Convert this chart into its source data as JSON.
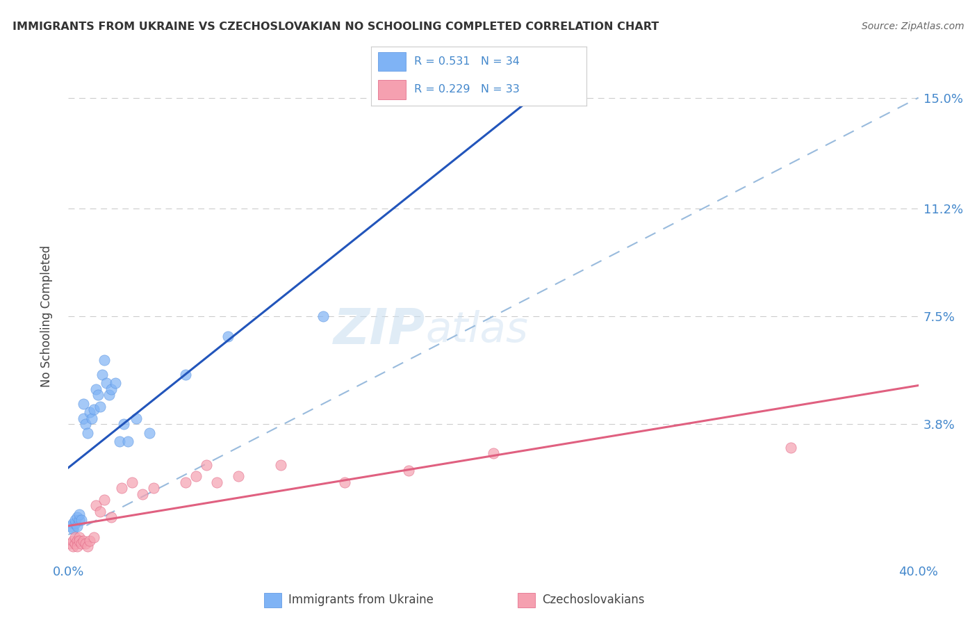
{
  "title": "IMMIGRANTS FROM UKRAINE VS CZECHOSLOVAKIAN NO SCHOOLING COMPLETED CORRELATION CHART",
  "source": "Source: ZipAtlas.com",
  "ylabel": "No Schooling Completed",
  "xlim": [
    0.0,
    0.4
  ],
  "ylim": [
    -0.008,
    0.158
  ],
  "xticks": [
    0.0,
    0.1,
    0.2,
    0.3,
    0.4
  ],
  "xticklabels": [
    "0.0%",
    "",
    "",
    "",
    "40.0%"
  ],
  "yticks": [
    0.038,
    0.075,
    0.112,
    0.15
  ],
  "yticklabels": [
    "3.8%",
    "7.5%",
    "11.2%",
    "15.0%"
  ],
  "color_ukraine": "#7fb3f5",
  "color_ukraine_edge": "#5591e0",
  "color_ukraine_line": "#2255bb",
  "color_czech": "#f5a0b0",
  "color_czech_edge": "#e06080",
  "color_czech_line": "#e06080",
  "color_diag": "#99bbdd",
  "watermark_zip": "ZIP",
  "watermark_atlas": "atlas",
  "grid_color": "#cccccc",
  "tick_label_color": "#4488cc",
  "legend_box_color": "#ffffff",
  "legend_border_color": "#cccccc",
  "ukraine_scatter_x": [
    0.001,
    0.002,
    0.002,
    0.003,
    0.003,
    0.004,
    0.004,
    0.005,
    0.005,
    0.006,
    0.007,
    0.007,
    0.008,
    0.009,
    0.01,
    0.011,
    0.012,
    0.013,
    0.014,
    0.015,
    0.016,
    0.017,
    0.018,
    0.019,
    0.02,
    0.022,
    0.024,
    0.026,
    0.028,
    0.032,
    0.038,
    0.055,
    0.075,
    0.12
  ],
  "ukraine_scatter_y": [
    0.003,
    0.004,
    0.002,
    0.004,
    0.005,
    0.003,
    0.006,
    0.005,
    0.007,
    0.005,
    0.04,
    0.045,
    0.038,
    0.035,
    0.042,
    0.04,
    0.043,
    0.05,
    0.048,
    0.044,
    0.055,
    0.06,
    0.052,
    0.048,
    0.05,
    0.052,
    0.032,
    0.038,
    0.032,
    0.04,
    0.035,
    0.055,
    0.068,
    0.075
  ],
  "czech_scatter_x": [
    0.001,
    0.002,
    0.002,
    0.003,
    0.003,
    0.004,
    0.004,
    0.005,
    0.005,
    0.006,
    0.007,
    0.008,
    0.009,
    0.01,
    0.012,
    0.013,
    0.015,
    0.017,
    0.02,
    0.025,
    0.03,
    0.035,
    0.04,
    0.055,
    0.06,
    0.065,
    0.07,
    0.08,
    0.1,
    0.13,
    0.16,
    0.2,
    0.34
  ],
  "czech_scatter_y": [
    -0.003,
    -0.004,
    -0.002,
    -0.003,
    -0.001,
    -0.002,
    -0.004,
    -0.001,
    -0.002,
    -0.003,
    -0.002,
    -0.003,
    -0.004,
    -0.002,
    -0.001,
    0.01,
    0.008,
    0.012,
    0.006,
    0.016,
    0.018,
    0.014,
    0.016,
    0.018,
    0.02,
    0.024,
    0.018,
    0.02,
    0.024,
    0.018,
    0.022,
    0.028,
    0.03
  ],
  "background_color": "#ffffff"
}
